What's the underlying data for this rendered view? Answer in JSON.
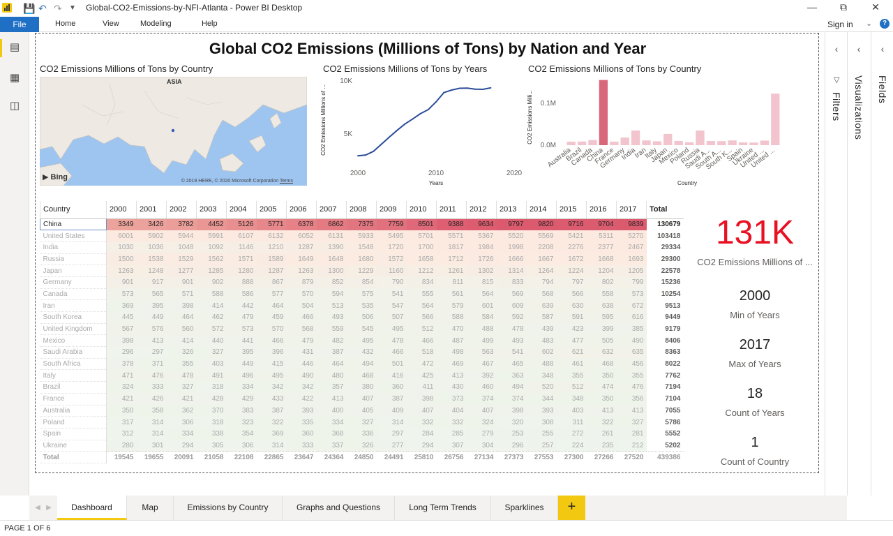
{
  "window": {
    "title": "Global-CO2-Emissions-by-NFI-Atlanta - Power BI Desktop",
    "controls": [
      "minimize-icon",
      "restore-icon",
      "close-icon"
    ]
  },
  "ribbon": {
    "file": "File",
    "tabs": [
      "Home",
      "View",
      "Modeling",
      "Help"
    ],
    "sign_in": "Sign in"
  },
  "left_nav": [
    "report-icon",
    "data-icon",
    "model-icon"
  ],
  "report": {
    "title": "Global CO2 Emissions (Millions of Tons) by Nation and Year"
  },
  "map_visual": {
    "title": "CO2 Emissions Millions of Tons by Country",
    "region_label": "ASIA",
    "bing": "Bing",
    "attribution": "© 2019 HERE, © 2020 Microsoft Corporation",
    "terms": "Terms"
  },
  "line_visual": {
    "title": "CO2 Emissions Millions of Tons by Years",
    "x_title": "Years",
    "y_title": "CO2 Emissions Millions of ...",
    "x_ticks": [
      "2000",
      "2010",
      "2020"
    ],
    "y_ticks": [
      "5K",
      "10K"
    ]
  },
  "bar_visual": {
    "title": "CO2 Emissions Millions of Tons by Country",
    "x_title": "Country",
    "y_title": "CO2 Emissions Milli...",
    "y_ticks": [
      "0.0M",
      "0.1M"
    ]
  },
  "chart_data": [
    {
      "type": "line",
      "title": "CO2 Emissions Millions of Tons by Years",
      "xlabel": "Years",
      "ylabel": "CO2 Emissions Millions of ...",
      "x": [
        2000,
        2001,
        2002,
        2003,
        2004,
        2005,
        2006,
        2007,
        2008,
        2009,
        2010,
        2011,
        2012,
        2013,
        2014,
        2015,
        2016,
        2017
      ],
      "values": [
        3349,
        3426,
        3782,
        4452,
        5126,
        5771,
        6378,
        6862,
        7375,
        7759,
        8501,
        9388,
        9634,
        9797,
        9820,
        9716,
        9704,
        9839
      ],
      "xlim": [
        2000,
        2020
      ],
      "ylim": [
        2500,
        10500
      ],
      "color": "#2b4c9a"
    },
    {
      "type": "bar",
      "title": "CO2 Emissions Millions of Tons by Country",
      "xlabel": "Country",
      "ylabel": "CO2 Emissions Milli...",
      "categories": [
        "Australia",
        "Brazil",
        "Canada",
        "China",
        "France",
        "Germany",
        "India",
        "Iran",
        "Italy",
        "Japan",
        "Mexico",
        "Poland",
        "Russia",
        "Saudi A...",
        "South A...",
        "South K...",
        "Spain",
        "Ukraine",
        "United ...",
        "United ..."
      ],
      "values": [
        7055,
        7194,
        10254,
        130679,
        7104,
        15236,
        29334,
        9513,
        7762,
        22578,
        8406,
        5786,
        29300,
        8363,
        8022,
        9449,
        5552,
        5202,
        9179,
        103418
      ],
      "ylim": [
        0,
        140000
      ],
      "highlighted": "China",
      "highlight_color": "#d9677a",
      "dim_color": "#f2c4cd"
    }
  ],
  "matrix": {
    "headers": [
      "Country",
      "2000",
      "2001",
      "2002",
      "2003",
      "2004",
      "2005",
      "2006",
      "2007",
      "2008",
      "2009",
      "2010",
      "2011",
      "2012",
      "2013",
      "2014",
      "2015",
      "2016",
      "2017",
      "Total"
    ],
    "rows": [
      [
        "China",
        "3349",
        "3426",
        "3782",
        "4452",
        "5126",
        "5771",
        "6378",
        "6862",
        "7375",
        "7759",
        "8501",
        "9388",
        "9634",
        "9797",
        "9820",
        "9716",
        "9704",
        "9839",
        "130679"
      ],
      [
        "United States",
        "6001",
        "5902",
        "5944",
        "5991",
        "6107",
        "6132",
        "6052",
        "6131",
        "5933",
        "5495",
        "5701",
        "5571",
        "5367",
        "5520",
        "5569",
        "5421",
        "5311",
        "5270",
        "103418"
      ],
      [
        "India",
        "1030",
        "1036",
        "1048",
        "1092",
        "1146",
        "1210",
        "1287",
        "1390",
        "1548",
        "1720",
        "1700",
        "1817",
        "1984",
        "1998",
        "2208",
        "2276",
        "2377",
        "2467",
        "29334"
      ],
      [
        "Russia",
        "1500",
        "1538",
        "1529",
        "1562",
        "1571",
        "1589",
        "1649",
        "1648",
        "1680",
        "1572",
        "1658",
        "1712",
        "1726",
        "1666",
        "1667",
        "1672",
        "1668",
        "1693",
        "29300"
      ],
      [
        "Japan",
        "1263",
        "1248",
        "1277",
        "1285",
        "1280",
        "1287",
        "1263",
        "1300",
        "1229",
        "1160",
        "1212",
        "1261",
        "1302",
        "1314",
        "1264",
        "1224",
        "1204",
        "1205",
        "22578"
      ],
      [
        "Germany",
        "901",
        "917",
        "901",
        "902",
        "888",
        "867",
        "879",
        "852",
        "854",
        "790",
        "834",
        "811",
        "815",
        "833",
        "794",
        "797",
        "802",
        "799",
        "15236"
      ],
      [
        "Canada",
        "573",
        "565",
        "571",
        "588",
        "586",
        "577",
        "570",
        "594",
        "575",
        "541",
        "555",
        "561",
        "564",
        "569",
        "568",
        "566",
        "558",
        "573",
        "10254"
      ],
      [
        "Iran",
        "369",
        "395",
        "398",
        "414",
        "442",
        "464",
        "504",
        "513",
        "535",
        "547",
        "564",
        "579",
        "601",
        "609",
        "639",
        "630",
        "638",
        "672",
        "9513"
      ],
      [
        "South Korea",
        "445",
        "449",
        "464",
        "462",
        "479",
        "459",
        "466",
        "493",
        "506",
        "507",
        "566",
        "588",
        "584",
        "592",
        "587",
        "591",
        "595",
        "616",
        "9449"
      ],
      [
        "United Kingdom",
        "567",
        "576",
        "560",
        "572",
        "573",
        "570",
        "568",
        "559",
        "545",
        "495",
        "512",
        "470",
        "488",
        "478",
        "439",
        "423",
        "399",
        "385",
        "9179"
      ],
      [
        "Mexico",
        "398",
        "413",
        "414",
        "440",
        "441",
        "466",
        "479",
        "482",
        "495",
        "478",
        "466",
        "487",
        "499",
        "493",
        "483",
        "477",
        "505",
        "490",
        "8406"
      ],
      [
        "Saudi Arabia",
        "296",
        "297",
        "326",
        "327",
        "395",
        "396",
        "431",
        "387",
        "432",
        "466",
        "518",
        "498",
        "563",
        "541",
        "602",
        "621",
        "632",
        "635",
        "8363"
      ],
      [
        "South Africa",
        "378",
        "371",
        "355",
        "403",
        "449",
        "415",
        "446",
        "464",
        "494",
        "501",
        "472",
        "469",
        "467",
        "465",
        "488",
        "461",
        "468",
        "456",
        "8022"
      ],
      [
        "Italy",
        "471",
        "476",
        "478",
        "491",
        "496",
        "495",
        "490",
        "480",
        "468",
        "416",
        "425",
        "413",
        "392",
        "363",
        "348",
        "355",
        "350",
        "355",
        "7762"
      ],
      [
        "Brazil",
        "324",
        "333",
        "327",
        "318",
        "334",
        "342",
        "342",
        "357",
        "380",
        "360",
        "411",
        "430",
        "460",
        "494",
        "520",
        "512",
        "474",
        "476",
        "7194"
      ],
      [
        "France",
        "421",
        "426",
        "421",
        "428",
        "429",
        "433",
        "422",
        "413",
        "407",
        "387",
        "398",
        "373",
        "374",
        "374",
        "344",
        "348",
        "350",
        "356",
        "7104"
      ],
      [
        "Australia",
        "350",
        "358",
        "362",
        "370",
        "383",
        "387",
        "393",
        "400",
        "405",
        "409",
        "407",
        "404",
        "407",
        "398",
        "393",
        "403",
        "413",
        "413",
        "7055"
      ],
      [
        "Poland",
        "317",
        "314",
        "306",
        "318",
        "323",
        "322",
        "335",
        "334",
        "327",
        "314",
        "332",
        "332",
        "324",
        "320",
        "308",
        "311",
        "322",
        "327",
        "5786"
      ],
      [
        "Spain",
        "312",
        "314",
        "334",
        "338",
        "354",
        "369",
        "360",
        "368",
        "336",
        "297",
        "284",
        "285",
        "279",
        "253",
        "255",
        "272",
        "261",
        "281",
        "5552"
      ],
      [
        "Ukraine",
        "280",
        "301",
        "294",
        "305",
        "306",
        "314",
        "333",
        "337",
        "326",
        "277",
        "294",
        "307",
        "304",
        "296",
        "257",
        "224",
        "235",
        "212",
        "5202"
      ]
    ],
    "grand_total": [
      "Total",
      "19545",
      "19655",
      "20091",
      "21058",
      "22108",
      "22865",
      "23647",
      "24364",
      "24850",
      "24491",
      "25810",
      "26756",
      "27134",
      "27373",
      "27553",
      "27300",
      "27266",
      "27520",
      "439386"
    ]
  },
  "cards": {
    "main_value": "131K",
    "main_label": "CO2 Emissions Millions of ...",
    "items": [
      {
        "value": "2000",
        "label": "Min of Years"
      },
      {
        "value": "2017",
        "label": "Max of Years"
      },
      {
        "value": "18",
        "label": "Count of Years"
      },
      {
        "value": "1",
        "label": "Count of Country"
      }
    ]
  },
  "panes": {
    "filters": "Filters",
    "visualizations": "Visualizations",
    "fields": "Fields"
  },
  "pages": {
    "tabs": [
      "Dashboard",
      "Map",
      "Emissions by Country",
      "Graphs and Questions",
      "Long Term Trends",
      "Sparklines"
    ],
    "active": "Dashboard",
    "add": "+"
  },
  "status": {
    "page_text": "PAGE 1 OF 6"
  }
}
